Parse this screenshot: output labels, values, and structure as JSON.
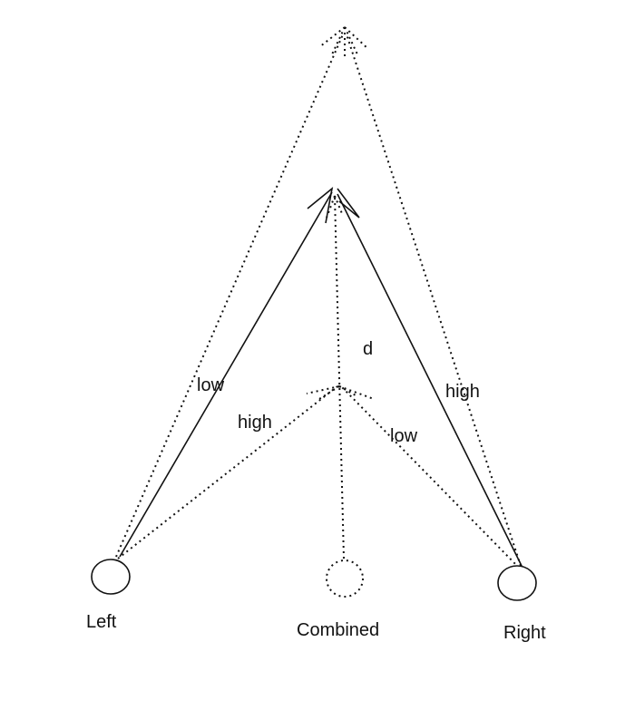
{
  "nodes": {
    "left": "Left",
    "combined": "Combined",
    "right": "Right"
  },
  "edge_labels": {
    "left_low": "low",
    "left_high": "high",
    "right_high": "high",
    "right_low": "low",
    "distance": "d"
  },
  "colors": {
    "stroke": "#111111",
    "background": "#ffffff"
  }
}
